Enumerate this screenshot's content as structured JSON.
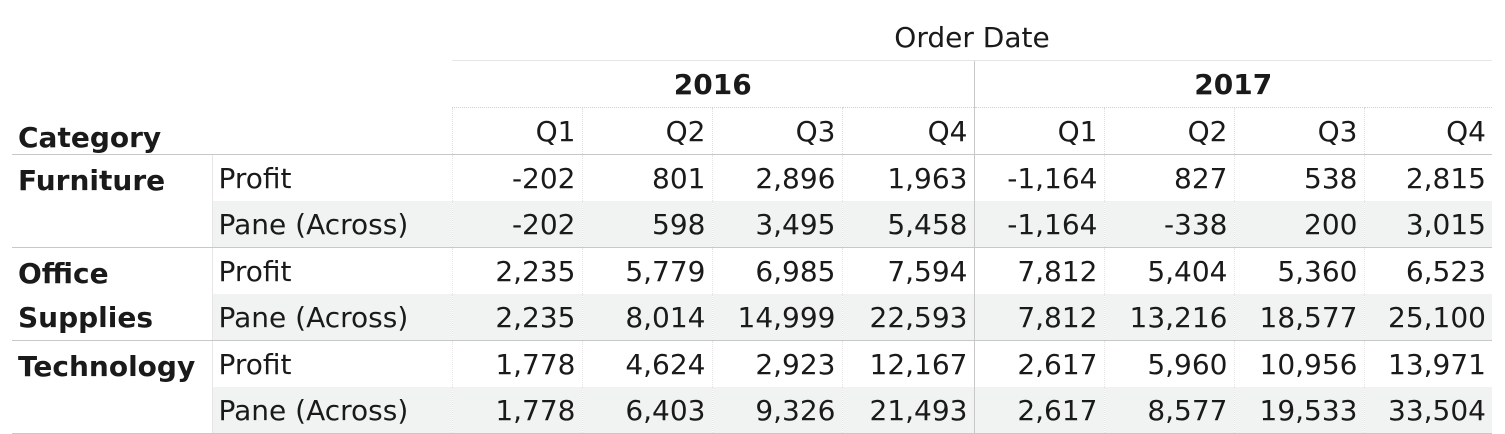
{
  "chart_data": {
    "type": "table",
    "column_header": "Order Date",
    "row_header": "Category",
    "years": [
      {
        "label": "2016",
        "quarters": [
          "Q1",
          "Q2",
          "Q3",
          "Q4"
        ]
      },
      {
        "label": "2017",
        "quarters": [
          "Q1",
          "Q2",
          "Q3",
          "Q4"
        ]
      }
    ],
    "rows": [
      {
        "category": "Furniture",
        "measures": [
          {
            "label": "Profit",
            "values": [
              "-202",
              "801",
              "2,896",
              "1,963",
              "-1,164",
              "827",
              "538",
              "2,815"
            ]
          },
          {
            "label": "Pane (Across)",
            "values": [
              "-202",
              "598",
              "3,495",
              "5,458",
              "-1,164",
              "-338",
              "200",
              "3,015"
            ]
          }
        ]
      },
      {
        "category": "Office Supplies",
        "measures": [
          {
            "label": "Profit",
            "values": [
              "2,235",
              "5,779",
              "6,985",
              "7,594",
              "7,812",
              "5,404",
              "5,360",
              "6,523"
            ]
          },
          {
            "label": "Pane (Across)",
            "values": [
              "2,235",
              "8,014",
              "14,999",
              "22,593",
              "7,812",
              "13,216",
              "18,577",
              "25,100"
            ]
          }
        ]
      },
      {
        "category": "Technology",
        "measures": [
          {
            "label": "Profit",
            "values": [
              "1,778",
              "4,624",
              "2,923",
              "12,167",
              "2,617",
              "5,960",
              "10,956",
              "13,971"
            ]
          },
          {
            "label": "Pane (Across)",
            "values": [
              "1,778",
              "6,403",
              "9,326",
              "21,493",
              "2,617",
              "8,577",
              "19,533",
              "33,504"
            ]
          }
        ]
      }
    ]
  }
}
